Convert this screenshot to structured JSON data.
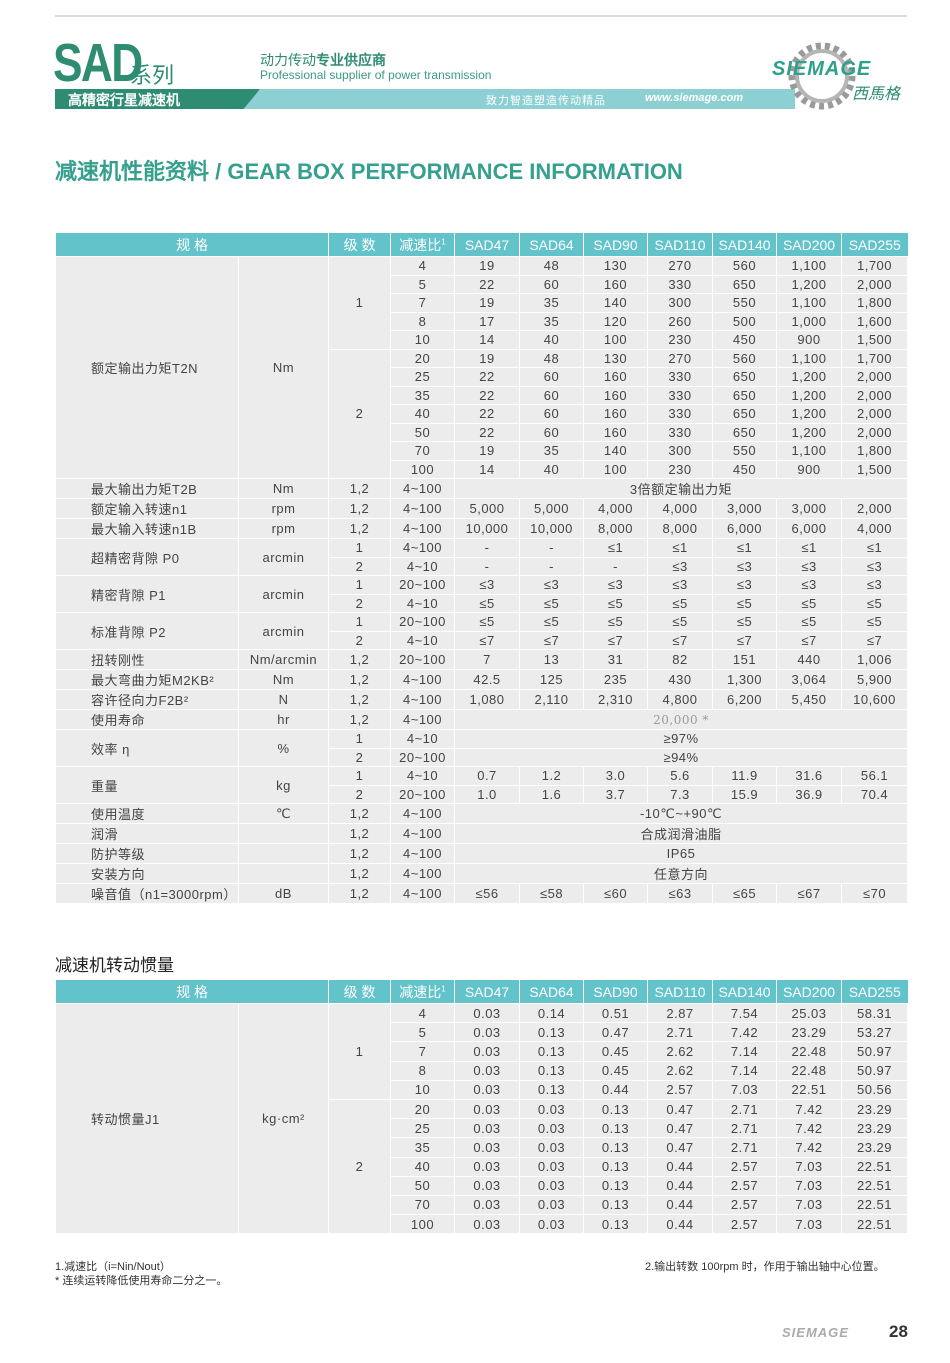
{
  "header": {
    "series_code": "SAD",
    "series_suffix": "系列",
    "tagline_cn_a": "动力传动",
    "tagline_cn_b": "专业供应商",
    "tagline_en": "Professional supplier of power transmission",
    "product_line": "高精密行星减速机",
    "slogan": "致力智造塑造传动精品",
    "url": "www.siemage.com",
    "brand": "SIEMAGE",
    "brand_cn": "西馬格",
    "colors": {
      "brand_green": "#2e8c72",
      "teal": "#63c3cb",
      "band": "#8dd0d4"
    }
  },
  "title": "减速机性能资料 / GEAR BOX PERFORMANCE INFORMATION",
  "performance_table": {
    "headers": [
      "规 格",
      "级 数",
      "减速比",
      "SAD47",
      "SAD64",
      "SAD90",
      "SAD110",
      "SAD140",
      "SAD200",
      "SAD255"
    ],
    "ratio_footnote": "1",
    "groups": [
      {
        "name": "额定输出力矩T2N",
        "unit": "Nm",
        "lines": [
          {
            "stage": "1",
            "ratio": "4",
            "values": [
              "19",
              "48",
              "130",
              "270",
              "560",
              "1,100",
              "1,700"
            ]
          },
          {
            "stage": "1",
            "ratio": "5",
            "values": [
              "22",
              "60",
              "160",
              "330",
              "650",
              "1,200",
              "2,000"
            ]
          },
          {
            "stage": "1",
            "ratio": "7",
            "values": [
              "19",
              "35",
              "140",
              "300",
              "550",
              "1,100",
              "1,800"
            ]
          },
          {
            "stage": "1",
            "ratio": "8",
            "values": [
              "17",
              "35",
              "120",
              "260",
              "500",
              "1,000",
              "1,600"
            ]
          },
          {
            "stage": "1",
            "ratio": "10",
            "values": [
              "14",
              "40",
              "100",
              "230",
              "450",
              "900",
              "1,500"
            ]
          },
          {
            "stage": "2",
            "ratio": "20",
            "values": [
              "19",
              "48",
              "130",
              "270",
              "560",
              "1,100",
              "1,700"
            ]
          },
          {
            "stage": "2",
            "ratio": "25",
            "values": [
              "22",
              "60",
              "160",
              "330",
              "650",
              "1,200",
              "2,000"
            ]
          },
          {
            "stage": "2",
            "ratio": "35",
            "values": [
              "22",
              "60",
              "160",
              "330",
              "650",
              "1,200",
              "2,000"
            ]
          },
          {
            "stage": "2",
            "ratio": "40",
            "values": [
              "22",
              "60",
              "160",
              "330",
              "650",
              "1,200",
              "2,000"
            ]
          },
          {
            "stage": "2",
            "ratio": "50",
            "values": [
              "22",
              "60",
              "160",
              "330",
              "650",
              "1,200",
              "2,000"
            ]
          },
          {
            "stage": "2",
            "ratio": "70",
            "values": [
              "19",
              "35",
              "140",
              "300",
              "550",
              "1,100",
              "1,800"
            ]
          },
          {
            "stage": "2",
            "ratio": "100",
            "values": [
              "14",
              "40",
              "100",
              "230",
              "450",
              "900",
              "1,500"
            ]
          }
        ]
      },
      {
        "name": "最大输出力矩T2B",
        "unit": "Nm",
        "lines": [
          {
            "stage": "1,2",
            "ratio": "4~100",
            "span": "3倍额定输出力矩"
          }
        ]
      },
      {
        "name": "额定输入转速n1",
        "unit": "rpm",
        "lines": [
          {
            "stage": "1,2",
            "ratio": "4~100",
            "values": [
              "5,000",
              "5,000",
              "4,000",
              "4,000",
              "3,000",
              "3,000",
              "2,000"
            ]
          }
        ]
      },
      {
        "name": "最大输入转速n1B",
        "unit": "rpm",
        "lines": [
          {
            "stage": "1,2",
            "ratio": "4~100",
            "values": [
              "10,000",
              "10,000",
              "8,000",
              "8,000",
              "6,000",
              "6,000",
              "4,000"
            ]
          }
        ]
      },
      {
        "name": "超精密背隙 P0",
        "unit": "arcmin",
        "lines": [
          {
            "stage": "1",
            "ratio": "4~100",
            "values": [
              "-",
              "-",
              "≤1",
              "≤1",
              "≤1",
              "≤1",
              "≤1"
            ]
          },
          {
            "stage": "2",
            "ratio": "4~10",
            "values": [
              "-",
              "-",
              "-",
              "≤3",
              "≤3",
              "≤3",
              "≤3"
            ]
          }
        ]
      },
      {
        "name": "精密背隙 P1",
        "unit": "arcmin",
        "lines": [
          {
            "stage": "1",
            "ratio": "20~100",
            "values": [
              "≤3",
              "≤3",
              "≤3",
              "≤3",
              "≤3",
              "≤3",
              "≤3"
            ]
          },
          {
            "stage": "2",
            "ratio": "4~10",
            "values": [
              "≤5",
              "≤5",
              "≤5",
              "≤5",
              "≤5",
              "≤5",
              "≤5"
            ]
          }
        ]
      },
      {
        "name": "标准背隙 P2",
        "unit": "arcmin",
        "lines": [
          {
            "stage": "1",
            "ratio": "20~100",
            "values": [
              "≤5",
              "≤5",
              "≤5",
              "≤5",
              "≤5",
              "≤5",
              "≤5"
            ]
          },
          {
            "stage": "2",
            "ratio": "4~10",
            "values": [
              "≤7",
              "≤7",
              "≤7",
              "≤7",
              "≤7",
              "≤7",
              "≤7"
            ]
          }
        ]
      },
      {
        "name": "扭转刚性",
        "unit": "Nm/arcmin",
        "lines": [
          {
            "stage": "1,2",
            "ratio": "20~100",
            "values": [
              "7",
              "13",
              "31",
              "82",
              "151",
              "440",
              "1,006"
            ]
          }
        ]
      },
      {
        "name": "最大弯曲力矩M2KB²",
        "unit": "Nm",
        "lines": [
          {
            "stage": "1,2",
            "ratio": "4~100",
            "values": [
              "42.5",
              "125",
              "235",
              "430",
              "1,300",
              "3,064",
              "5,900"
            ]
          }
        ]
      },
      {
        "name": "容许径向力F2B²",
        "unit": "N",
        "lines": [
          {
            "stage": "1,2",
            "ratio": "4~100",
            "values": [
              "1,080",
              "2,110",
              "2,310",
              "4,800",
              "6,200",
              "5,450",
              "10,600"
            ]
          }
        ]
      },
      {
        "name": "使用寿命",
        "unit": "hr",
        "lines": [
          {
            "stage": "1,2",
            "ratio": "4~100",
            "span": "20,000 *",
            "serif": true
          }
        ]
      },
      {
        "name": "效率 η",
        "unit": "%",
        "lines": [
          {
            "stage": "1",
            "ratio": "4~10",
            "span": "≥97%"
          },
          {
            "stage": "2",
            "ratio": "20~100",
            "span": "≥94%"
          }
        ]
      },
      {
        "name": "重量",
        "unit": "kg",
        "lines": [
          {
            "stage": "1",
            "ratio": "4~10",
            "values": [
              "0.7",
              "1.2",
              "3.0",
              "5.6",
              "11.9",
              "31.6",
              "56.1"
            ]
          },
          {
            "stage": "2",
            "ratio": "20~100",
            "values": [
              "1.0",
              "1.6",
              "3.7",
              "7.3",
              "15.9",
              "36.9",
              "70.4"
            ]
          }
        ]
      },
      {
        "name": "使用温度",
        "unit": "℃",
        "lines": [
          {
            "stage": "1,2",
            "ratio": "4~100",
            "span": "-10℃~+90℃"
          }
        ]
      },
      {
        "name": "润滑",
        "unit": "",
        "lines": [
          {
            "stage": "1,2",
            "ratio": "4~100",
            "span": "合成润滑油脂"
          }
        ]
      },
      {
        "name": "防护等级",
        "unit": "",
        "lines": [
          {
            "stage": "1,2",
            "ratio": "4~100",
            "span": "IP65"
          }
        ]
      },
      {
        "name": "安装方向",
        "unit": "",
        "lines": [
          {
            "stage": "1,2",
            "ratio": "4~100",
            "span": "任意方向"
          }
        ]
      },
      {
        "name": "噪音值（n1=3000rpm）",
        "unit": "dB",
        "lines": [
          {
            "stage": "1,2",
            "ratio": "4~100",
            "values": [
              "≤56",
              "≤58",
              "≤60",
              "≤63",
              "≤65",
              "≤67",
              "≤70"
            ]
          }
        ]
      }
    ]
  },
  "inertia_title": "减速机转动惯量",
  "inertia_table": {
    "headers": [
      "规 格",
      "级 数",
      "减速比",
      "SAD47",
      "SAD64",
      "SAD90",
      "SAD110",
      "SAD140",
      "SAD200",
      "SAD255"
    ],
    "ratio_footnote": "1",
    "groups": [
      {
        "name": "转动惯量J1",
        "unit": "kg·cm²",
        "lines": [
          {
            "stage": "1",
            "ratio": "4",
            "values": [
              "0.03",
              "0.14",
              "0.51",
              "2.87",
              "7.54",
              "25.03",
              "58.31"
            ]
          },
          {
            "stage": "1",
            "ratio": "5",
            "values": [
              "0.03",
              "0.13",
              "0.47",
              "2.71",
              "7.42",
              "23.29",
              "53.27"
            ]
          },
          {
            "stage": "1",
            "ratio": "7",
            "values": [
              "0.03",
              "0.13",
              "0.45",
              "2.62",
              "7.14",
              "22.48",
              "50.97"
            ]
          },
          {
            "stage": "1",
            "ratio": "8",
            "values": [
              "0.03",
              "0.13",
              "0.45",
              "2.62",
              "7.14",
              "22.48",
              "50.97"
            ]
          },
          {
            "stage": "1",
            "ratio": "10",
            "values": [
              "0.03",
              "0.13",
              "0.44",
              "2.57",
              "7.03",
              "22.51",
              "50.56"
            ]
          },
          {
            "stage": "2",
            "ratio": "20",
            "values": [
              "0.03",
              "0.03",
              "0.13",
              "0.47",
              "2.71",
              "7.42",
              "23.29"
            ]
          },
          {
            "stage": "2",
            "ratio": "25",
            "values": [
              "0.03",
              "0.03",
              "0.13",
              "0.47",
              "2.71",
              "7.42",
              "23.29"
            ]
          },
          {
            "stage": "2",
            "ratio": "35",
            "values": [
              "0.03",
              "0.03",
              "0.13",
              "0.47",
              "2.71",
              "7.42",
              "23.29"
            ]
          },
          {
            "stage": "2",
            "ratio": "40",
            "values": [
              "0.03",
              "0.03",
              "0.13",
              "0.44",
              "2.57",
              "7.03",
              "22.51"
            ]
          },
          {
            "stage": "2",
            "ratio": "50",
            "values": [
              "0.03",
              "0.03",
              "0.13",
              "0.44",
              "2.57",
              "7.03",
              "22.51"
            ]
          },
          {
            "stage": "2",
            "ratio": "70",
            "values": [
              "0.03",
              "0.03",
              "0.13",
              "0.44",
              "2.57",
              "7.03",
              "22.51"
            ]
          },
          {
            "stage": "2",
            "ratio": "100",
            "values": [
              "0.03",
              "0.03",
              "0.13",
              "0.44",
              "2.57",
              "7.03",
              "22.51"
            ]
          }
        ]
      }
    ]
  },
  "notes": {
    "note1": "1.减速比（i=Nin/Nout）",
    "note_star": "* 连续运转降低使用寿命二分之一。",
    "note2": "2.输出转数 100rpm 时，作用于输出轴中心位置。"
  },
  "footer": {
    "brand": "SIEMAGE",
    "page_number": "28"
  }
}
